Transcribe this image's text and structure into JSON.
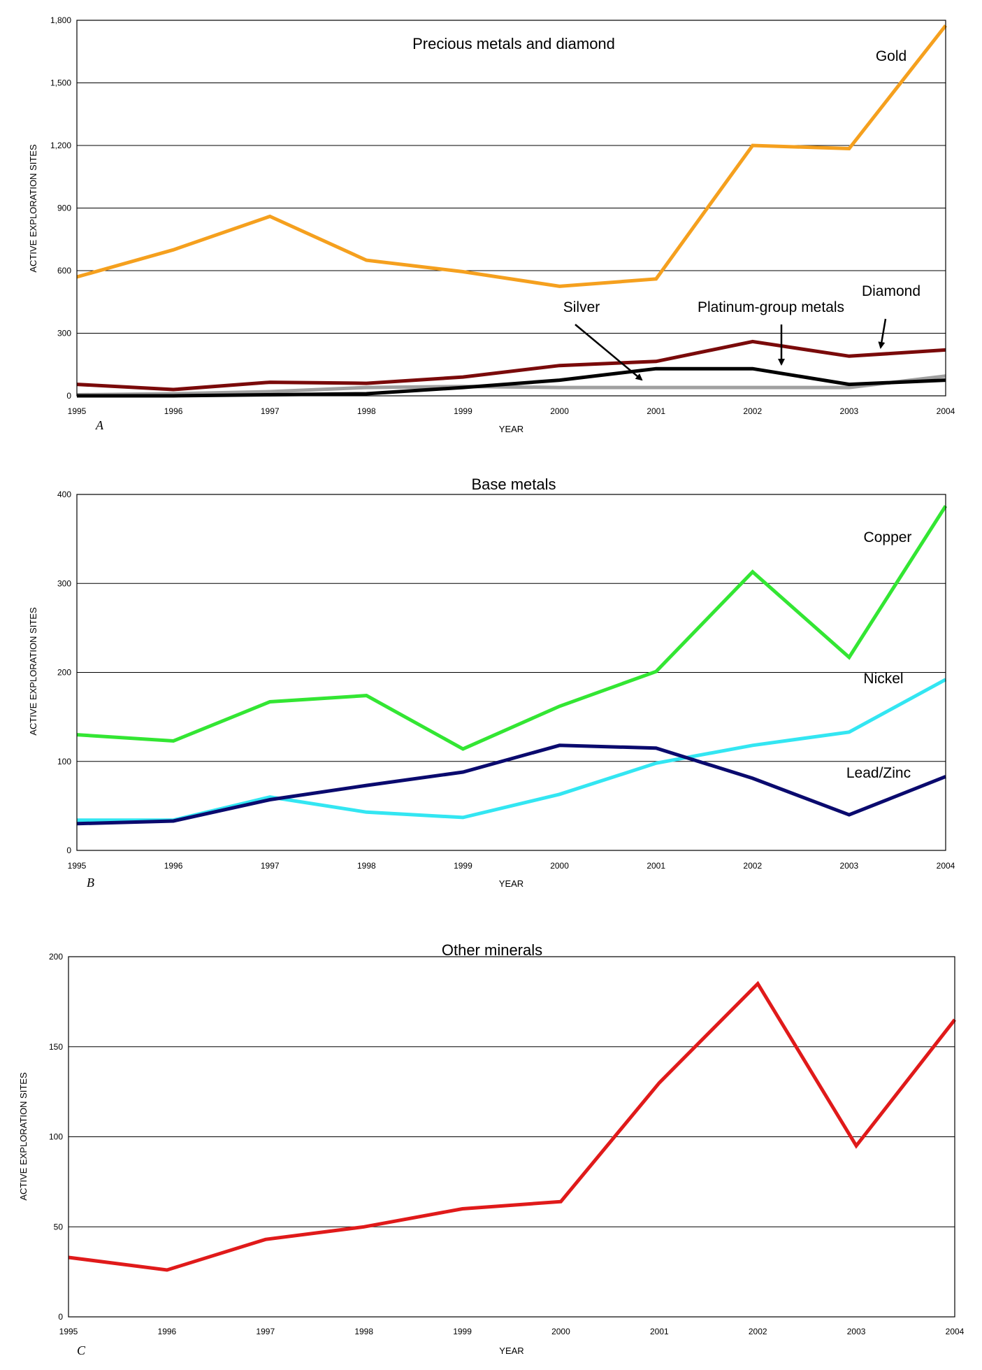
{
  "chart_data": [
    {
      "type": "line",
      "panel": "A",
      "title": "Precious metals and diamond",
      "xlabel": "YEAR",
      "ylabel": "ACTIVE EXPLORATION SITES",
      "ylim": [
        0,
        1800
      ],
      "yticks": [
        0,
        300,
        600,
        900,
        1200,
        1500,
        1800
      ],
      "ytick_labels": [
        "0",
        "300",
        "600",
        "900",
        "1,200",
        "1,500",
        "1,800"
      ],
      "x": [
        1995,
        1996,
        1997,
        1998,
        1999,
        2000,
        2001,
        2002,
        2003,
        2004
      ],
      "grid": "horizontal",
      "series": [
        {
          "name": "Gold",
          "color": "#f5a01e",
          "values": [
            570,
            700,
            860,
            650,
            595,
            525,
            560,
            1200,
            1185,
            1775
          ]
        },
        {
          "name": "Diamond",
          "color": "#7a0a0a",
          "values": [
            55,
            30,
            65,
            60,
            90,
            145,
            165,
            260,
            190,
            220
          ]
        },
        {
          "name": "Silver",
          "color": "#a0a0a0",
          "values": [
            5,
            10,
            20,
            40,
            45,
            40,
            40,
            40,
            40,
            95
          ]
        },
        {
          "name": "Platinum-group metals",
          "color": "#000000",
          "values": [
            0,
            0,
            5,
            10,
            40,
            75,
            130,
            130,
            55,
            75
          ]
        }
      ]
    },
    {
      "type": "line",
      "panel": "B",
      "title": "Base metals",
      "xlabel": "YEAR",
      "ylabel": "ACTIVE EXPLORATION SITES",
      "ylim": [
        0,
        400
      ],
      "yticks": [
        0,
        100,
        200,
        300,
        400
      ],
      "ytick_labels": [
        "0",
        "100",
        "200",
        "300",
        "400"
      ],
      "x": [
        1995,
        1996,
        1997,
        1998,
        1999,
        2000,
        2001,
        2002,
        2003,
        2004
      ],
      "grid": "horizontal",
      "series": [
        {
          "name": "Copper",
          "color": "#33e633",
          "values": [
            130,
            123,
            167,
            174,
            114,
            162,
            201,
            313,
            217,
            387
          ]
        },
        {
          "name": "Nickel",
          "color": "#33e6f2",
          "values": [
            34,
            34,
            60,
            43,
            37,
            63,
            98,
            118,
            133,
            192
          ]
        },
        {
          "name": "Lead/Zinc",
          "color": "#0a0a6e",
          "values": [
            30,
            33,
            57,
            73,
            88,
            118,
            115,
            81,
            40,
            83
          ]
        }
      ]
    },
    {
      "type": "line",
      "panel": "C",
      "title": "Other minerals",
      "xlabel": "YEAR",
      "ylabel": "ACTIVE EXPLORATION SITES",
      "ylim": [
        0,
        200
      ],
      "yticks": [
        0,
        50,
        100,
        150,
        200
      ],
      "ytick_labels": [
        "0",
        "50",
        "100",
        "150",
        "200"
      ],
      "x": [
        1995,
        1996,
        1997,
        1998,
        1999,
        2000,
        2001,
        2002,
        2003,
        2004
      ],
      "grid": "horizontal",
      "series": [
        {
          "name": "",
          "color": "#e01a1a",
          "values": [
            33,
            26,
            43,
            50,
            60,
            64,
            130,
            185,
            95,
            165
          ]
        }
      ]
    }
  ]
}
